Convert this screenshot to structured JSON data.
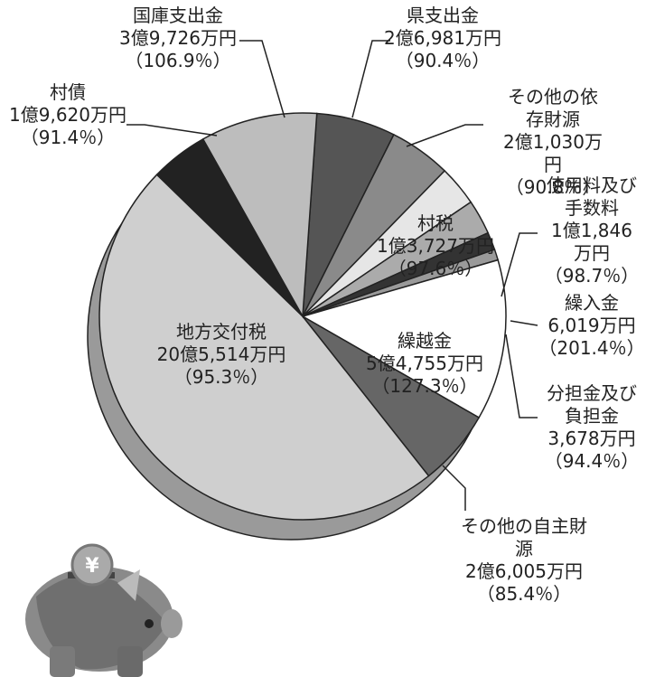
{
  "chart_data": {
    "type": "pie",
    "categories": [
      "県支出金",
      "その他の依存財源",
      "村税",
      "使用料及び\n手数料",
      "繰入金",
      "分担金及び\n負担金",
      "繰越金",
      "その他の自主財源",
      "地方交付税",
      "村債",
      "国庫支出金"
    ],
    "values": [
      26981,
      21030,
      13727,
      11846,
      6019,
      3678,
      54755,
      26005,
      205514,
      19620,
      39726
    ],
    "value_labels": [
      "2億6,981万円",
      "2億1,030万円",
      "1億3,727万円",
      "1億1,846万円",
      "6,019万円",
      "3,678万円",
      "5億4,755万円",
      "2億6,005万円",
      "20億5,514万円",
      "1億9,620万円",
      "3億9,726万円"
    ],
    "ratio_labels": [
      "（90.4％）",
      "（90.8％）",
      "（97.6％）",
      "（98.7％）",
      "（201.4％）",
      "（94.4％）",
      "（127.3％）",
      "（85.4％）",
      "（95.3％）",
      "（91.4％）",
      "（106.9％）"
    ],
    "colors": [
      "#555555",
      "#8a8a8a",
      "#e6e6e6",
      "#ababab",
      "#333333",
      "#9a9a9a",
      "#ffffff",
      "#666666",
      "#cfcfcf",
      "#222222",
      "#bdbdbd"
    ]
  }
}
